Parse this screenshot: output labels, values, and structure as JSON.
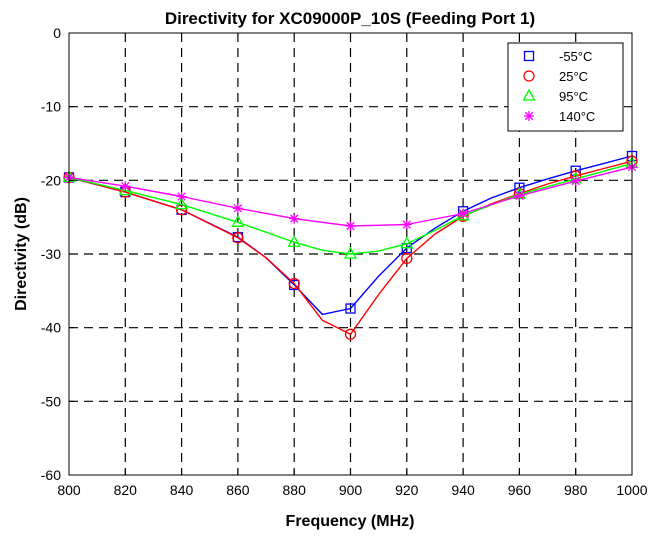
{
  "chart_data": {
    "type": "line",
    "title": "Directivity for XC09000P_10S (Feeding Port 1)",
    "xlabel": "Frequency (MHz)",
    "ylabel": "Directivity (dB)",
    "xlim": [
      800,
      1000
    ],
    "ylim": [
      -60,
      0
    ],
    "xticks": [
      800,
      820,
      840,
      860,
      880,
      900,
      920,
      940,
      960,
      980,
      1000
    ],
    "yticks": [
      0,
      -10,
      -20,
      -30,
      -40,
      -50,
      -60
    ],
    "grid": true,
    "grid_style": "dashed",
    "legend_position": "top-right",
    "series": [
      {
        "name": "-55°C",
        "color": "#0000ff",
        "marker": "square",
        "x": [
          800,
          820,
          840,
          860,
          880,
          900,
          920,
          940,
          960,
          980,
          1000
        ],
        "y": [
          -19.6,
          -21.6,
          -24.0,
          -27.7,
          -34.2,
          -37.4,
          -29.2,
          -24.2,
          -21.0,
          -18.7,
          -16.7
        ],
        "curve_x": [
          800,
          820,
          840,
          860,
          870,
          880,
          890,
          900,
          910,
          920,
          930,
          940,
          950,
          960,
          970,
          980,
          990,
          1000
        ],
        "curve_y": [
          -19.6,
          -21.6,
          -24.0,
          -27.7,
          -30.5,
          -34.2,
          -38.2,
          -37.4,
          -33.0,
          -29.2,
          -26.5,
          -24.2,
          -22.4,
          -21.0,
          -19.8,
          -18.7,
          -17.7,
          -16.7
        ]
      },
      {
        "name": "25°C",
        "color": "#ff0000",
        "marker": "circle",
        "x": [
          800,
          820,
          840,
          860,
          880,
          900,
          920,
          940,
          960,
          980,
          1000
        ],
        "y": [
          -19.6,
          -21.6,
          -24.0,
          -27.8,
          -34.0,
          -40.9,
          -30.6,
          -24.9,
          -21.8,
          -19.4,
          -17.4
        ],
        "curve_x": [
          800,
          820,
          840,
          860,
          870,
          880,
          890,
          900,
          910,
          920,
          930,
          940,
          950,
          960,
          970,
          980,
          990,
          1000
        ],
        "curve_y": [
          -19.6,
          -21.6,
          -24.0,
          -27.8,
          -30.5,
          -34.0,
          -39.0,
          -40.9,
          -35.5,
          -30.6,
          -27.3,
          -24.9,
          -23.2,
          -21.8,
          -20.5,
          -19.4,
          -18.4,
          -17.4
        ]
      },
      {
        "name": "95°C",
        "color": "#00ff00",
        "marker": "triangle",
        "x": [
          800,
          820,
          840,
          860,
          880,
          900,
          920,
          940,
          960,
          980,
          1000
        ],
        "y": [
          -19.6,
          -21.4,
          -23.3,
          -25.7,
          -28.4,
          -30.0,
          -28.6,
          -24.8,
          -21.9,
          -19.8,
          -17.7
        ],
        "curve_x": [
          800,
          820,
          840,
          860,
          880,
          890,
          900,
          910,
          920,
          930,
          940,
          960,
          980,
          1000
        ],
        "curve_y": [
          -19.6,
          -21.4,
          -23.3,
          -25.7,
          -28.4,
          -29.5,
          -30.0,
          -29.6,
          -28.6,
          -26.8,
          -24.8,
          -21.9,
          -19.8,
          -17.7
        ]
      },
      {
        "name": "140°C",
        "color": "#ff00ff",
        "marker": "star",
        "x": [
          800,
          820,
          840,
          860,
          880,
          900,
          920,
          940,
          960,
          980,
          1000
        ],
        "y": [
          -19.6,
          -20.8,
          -22.2,
          -23.8,
          -25.2,
          -26.2,
          -26.0,
          -24.5,
          -22.1,
          -20.1,
          -18.2
        ],
        "curve_x": [
          800,
          820,
          840,
          860,
          880,
          900,
          920,
          940,
          960,
          980,
          1000
        ],
        "curve_y": [
          -19.6,
          -20.8,
          -22.2,
          -23.8,
          -25.2,
          -26.2,
          -26.0,
          -24.5,
          -22.1,
          -20.1,
          -18.2
        ]
      }
    ]
  }
}
